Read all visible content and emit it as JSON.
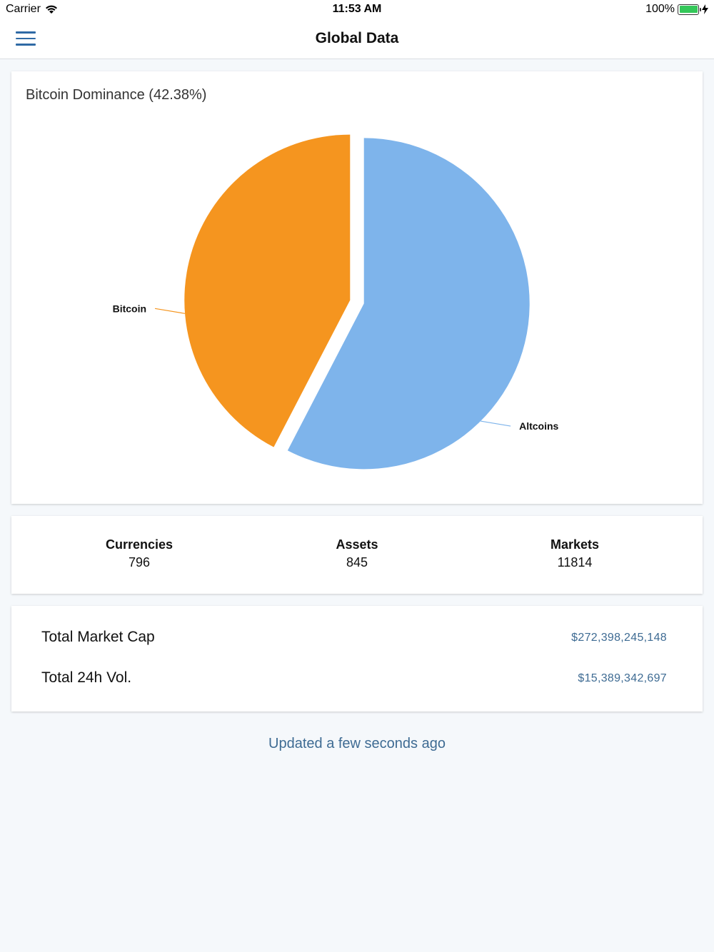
{
  "status_bar": {
    "carrier": "Carrier",
    "time": "11:53 AM",
    "battery": "100%"
  },
  "nav": {
    "title": "Global Data"
  },
  "dominance": {
    "title": "Bitcoin Dominance (42.38%)"
  },
  "chart_data": {
    "type": "pie",
    "title": "Bitcoin Dominance (42.38%)",
    "slices": [
      {
        "label": "Bitcoin",
        "value": 42.38,
        "color": "#f5951f"
      },
      {
        "label": "Altcoins",
        "value": 57.62,
        "color": "#7eb4eb"
      }
    ]
  },
  "stats": [
    {
      "label": "Currencies",
      "value": "796"
    },
    {
      "label": "Assets",
      "value": "845"
    },
    {
      "label": "Markets",
      "value": "11814"
    }
  ],
  "totals": {
    "market_cap_label": "Total Market Cap",
    "market_cap_value": "$272,398,245,148",
    "volume_label": "Total 24h Vol.",
    "volume_value": "$15,389,342,697"
  },
  "updated_text": "Updated a few seconds ago",
  "colors": {
    "accent": "#2f6aa5",
    "link_text": "#3e6b93",
    "background": "#f5f8fb"
  }
}
